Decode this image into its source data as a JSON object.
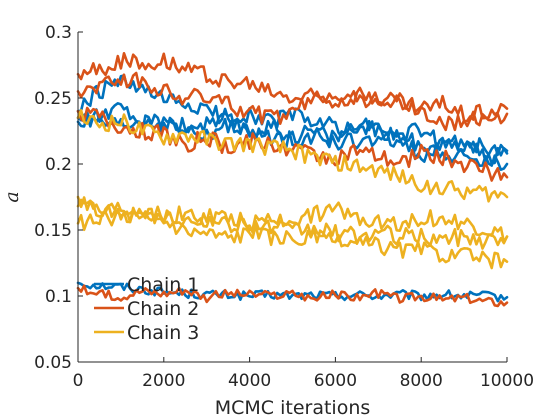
{
  "chart_data": {
    "type": "line",
    "xlabel": "MCMC iterations",
    "ylabel": "a",
    "xlim": [
      0,
      10000
    ],
    "ylim": [
      0.05,
      0.3
    ],
    "xticks": [
      0,
      2000,
      4000,
      6000,
      8000,
      10000
    ],
    "xtick_labels": [
      "0",
      "2000",
      "4000",
      "6000",
      "8000",
      "10000"
    ],
    "yticks": [
      0.05,
      0.1,
      0.15,
      0.2,
      0.25,
      0.3
    ],
    "ytick_labels": [
      "0.05",
      "0.1",
      "0.15",
      "0.2",
      "0.25",
      "0.3"
    ],
    "grid": false,
    "legend_position": "bottom-left",
    "x": [
      0,
      500,
      1000,
      1500,
      2000,
      2500,
      3000,
      3500,
      4000,
      4500,
      5000,
      5500,
      6000,
      6500,
      7000,
      7500,
      8000,
      8500,
      9000,
      9500,
      10000
    ],
    "series": [
      {
        "name": "Chain 1",
        "color": "#0072bd",
        "legend": true,
        "values": [
          0.11,
          0.108,
          0.107,
          0.105,
          0.103,
          0.102,
          0.101,
          0.101,
          0.1,
          0.101,
          0.1,
          0.101,
          0.1,
          0.101,
          0.1,
          0.101,
          0.1,
          0.101,
          0.1,
          0.1,
          0.099
        ]
      },
      {
        "color": "#0072bd",
        "legend": false,
        "values": [
          0.24,
          0.255,
          0.262,
          0.255,
          0.248,
          0.245,
          0.24,
          0.235,
          0.238,
          0.232,
          0.238,
          0.232,
          0.228,
          0.225,
          0.228,
          0.222,
          0.225,
          0.215,
          0.218,
          0.212,
          0.208
        ]
      },
      {
        "color": "#0072bd",
        "legend": false,
        "values": [
          0.235,
          0.238,
          0.24,
          0.23,
          0.235,
          0.228,
          0.23,
          0.233,
          0.225,
          0.228,
          0.222,
          0.225,
          0.22,
          0.23,
          0.225,
          0.22,
          0.215,
          0.21,
          0.205,
          0.202,
          0.2
        ]
      },
      {
        "color": "#0072bd",
        "legend": false,
        "values": [
          0.232,
          0.23,
          0.228,
          0.232,
          0.23,
          0.225,
          0.22,
          0.23,
          0.222,
          0.22,
          0.218,
          0.222,
          0.215,
          0.218,
          0.215,
          0.22,
          0.205,
          0.212,
          0.215,
          0.205,
          0.21
        ]
      },
      {
        "name": "Chain 2",
        "color": "#d95319",
        "legend": true,
        "values": [
          0.106,
          0.101,
          0.1,
          0.104,
          0.102,
          0.105,
          0.099,
          0.102,
          0.101,
          0.1,
          0.102,
          0.098,
          0.101,
          0.099,
          0.102,
          0.098,
          0.1,
          0.097,
          0.099,
          0.096,
          0.095
        ]
      },
      {
        "color": "#d95319",
        "legend": false,
        "values": [
          0.268,
          0.272,
          0.278,
          0.275,
          0.28,
          0.272,
          0.268,
          0.262,
          0.26,
          0.255,
          0.25,
          0.252,
          0.248,
          0.252,
          0.25,
          0.248,
          0.242,
          0.245,
          0.238,
          0.24,
          0.242
        ]
      },
      {
        "color": "#d95319",
        "legend": false,
        "values": [
          0.255,
          0.26,
          0.265,
          0.262,
          0.255,
          0.25,
          0.252,
          0.245,
          0.24,
          0.235,
          0.238,
          0.25,
          0.255,
          0.248,
          0.25,
          0.245,
          0.24,
          0.23,
          0.232,
          0.235,
          0.238
        ]
      },
      {
        "color": "#d95319",
        "legend": false,
        "values": [
          0.24,
          0.235,
          0.228,
          0.225,
          0.222,
          0.215,
          0.22,
          0.212,
          0.218,
          0.215,
          0.212,
          0.208,
          0.205,
          0.21,
          0.205,
          0.2,
          0.21,
          0.205,
          0.2,
          0.195,
          0.19
        ]
      },
      {
        "name": "Chain 3",
        "color": "#edb120",
        "legend": true,
        "values": [
          0.175,
          0.165,
          0.168,
          0.165,
          0.162,
          0.158,
          0.16,
          0.155,
          0.155,
          0.152,
          0.15,
          0.15,
          0.148,
          0.145,
          0.148,
          0.145,
          0.145,
          0.143,
          0.145,
          0.142,
          0.145
        ]
      },
      {
        "color": "#edb120",
        "legend": false,
        "values": [
          0.235,
          0.23,
          0.232,
          0.225,
          0.22,
          0.222,
          0.218,
          0.215,
          0.215,
          0.212,
          0.21,
          0.205,
          0.202,
          0.198,
          0.195,
          0.19,
          0.185,
          0.182,
          0.18,
          0.178,
          0.175
        ]
      },
      {
        "color": "#edb120",
        "legend": false,
        "values": [
          0.155,
          0.158,
          0.16,
          0.162,
          0.16,
          0.162,
          0.155,
          0.16,
          0.155,
          0.158,
          0.158,
          0.162,
          0.165,
          0.16,
          0.158,
          0.155,
          0.16,
          0.158,
          0.155,
          0.15,
          0.145
        ]
      },
      {
        "color": "#edb120",
        "legend": false,
        "values": [
          0.168,
          0.165,
          0.162,
          0.16,
          0.158,
          0.15,
          0.148,
          0.145,
          0.148,
          0.145,
          0.142,
          0.145,
          0.14,
          0.14,
          0.138,
          0.135,
          0.135,
          0.132,
          0.13,
          0.128,
          0.126
        ]
      }
    ]
  }
}
